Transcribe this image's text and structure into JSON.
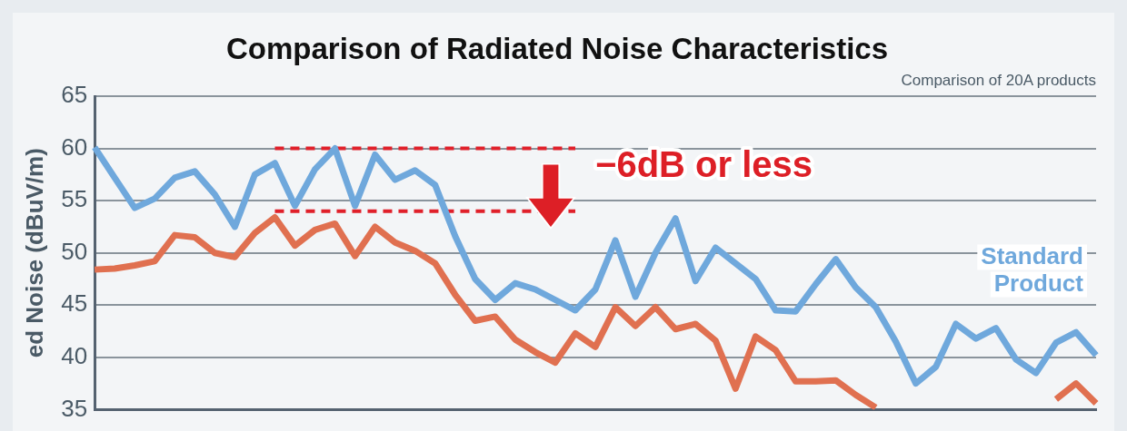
{
  "chart_data": {
    "type": "line",
    "title": "Comparison of Radiated Noise Characteristics",
    "subtitle": "Comparison of 20A products",
    "ylabel": "ed Noise (dBuV/m)",
    "annotations": [
      "−6dB or less"
    ],
    "categories": [
      null,
      null,
      null,
      null,
      null,
      null,
      null,
      null,
      null,
      null,
      null,
      null,
      null,
      null,
      null,
      null,
      null,
      null,
      null,
      null,
      null,
      null,
      null,
      null,
      null,
      null,
      null,
      null,
      null,
      null,
      null,
      null,
      null,
      null,
      null,
      null,
      null,
      null,
      null,
      null,
      null,
      null,
      null,
      null,
      null,
      null,
      null,
      null,
      null,
      null,
      null
    ],
    "ylim": [
      35,
      65
    ],
    "yticks": [
      35,
      40,
      45,
      50,
      55,
      60,
      65
    ],
    "grid": "y",
    "legend": false,
    "tick_labels": "y",
    "marker": "none",
    "series": [
      {
        "name": "Standard Product",
        "color": "#6fa8dc",
        "values": [
          60.1,
          57.2,
          54.3,
          55.2,
          57.2,
          57.8,
          55.6,
          52.5,
          57.5,
          58.6,
          54.5,
          58,
          60,
          54.5,
          59.4,
          57,
          57.9,
          56.5,
          51.6,
          47.5,
          45.5,
          47.1,
          46.5,
          45.5,
          44.5,
          46.5,
          51.2,
          45.8,
          50,
          53.3,
          47.3,
          50.5,
          49,
          47.5,
          44.5,
          44.4,
          47,
          49.4,
          46.7,
          44.8,
          41.5,
          37.5,
          39.1,
          43.2,
          41.8,
          42.8,
          39.8,
          38.5,
          41.4,
          42.4,
          40.2
        ]
      },
      {
        "color": "#e07050",
        "values": [
          48.4,
          48.5,
          48.8,
          49.2,
          51.7,
          51.5,
          50,
          49.6,
          51.9,
          53.4,
          50.7,
          52.2,
          52.8,
          49.7,
          52.5,
          51,
          50.2,
          49,
          46,
          43.5,
          43.9,
          41.7,
          40.5,
          39.5,
          42.3,
          41,
          44.8,
          43,
          44.8,
          42.7,
          43.2,
          41.6,
          37,
          42,
          40.7,
          37.7,
          37.7,
          37.8,
          36.4,
          35.2,
          null,
          null,
          null,
          null,
          null,
          null,
          null,
          null,
          36,
          37.5,
          35.6
        ]
      },
      {
        "type": "line",
        "color": "#e0202a",
        "line_style": "dashed",
        "values": [
          null,
          null,
          null,
          null,
          null,
          null,
          null,
          null,
          null,
          60,
          null,
          null,
          null,
          null,
          null,
          null,
          null,
          null,
          null,
          null,
          null,
          null,
          null,
          null,
          60,
          null,
          null,
          null,
          null,
          null,
          null,
          null,
          null,
          null,
          null,
          null,
          null,
          null,
          null,
          null,
          null,
          null,
          null,
          null,
          null,
          null,
          null,
          null,
          null,
          null,
          null
        ]
      },
      {
        "type": "line",
        "color": "#e0202a",
        "line_style": "dashed",
        "values": [
          null,
          null,
          null,
          null,
          null,
          null,
          null,
          null,
          null,
          54,
          null,
          null,
          null,
          null,
          null,
          null,
          null,
          null,
          null,
          null,
          null,
          null,
          null,
          null,
          54,
          null,
          null,
          null,
          null,
          null,
          null,
          null,
          null,
          null,
          null,
          null,
          null,
          null,
          null,
          null,
          null,
          null,
          null,
          null,
          null,
          null,
          null,
          null,
          null,
          null,
          null
        ]
      }
    ]
  }
}
